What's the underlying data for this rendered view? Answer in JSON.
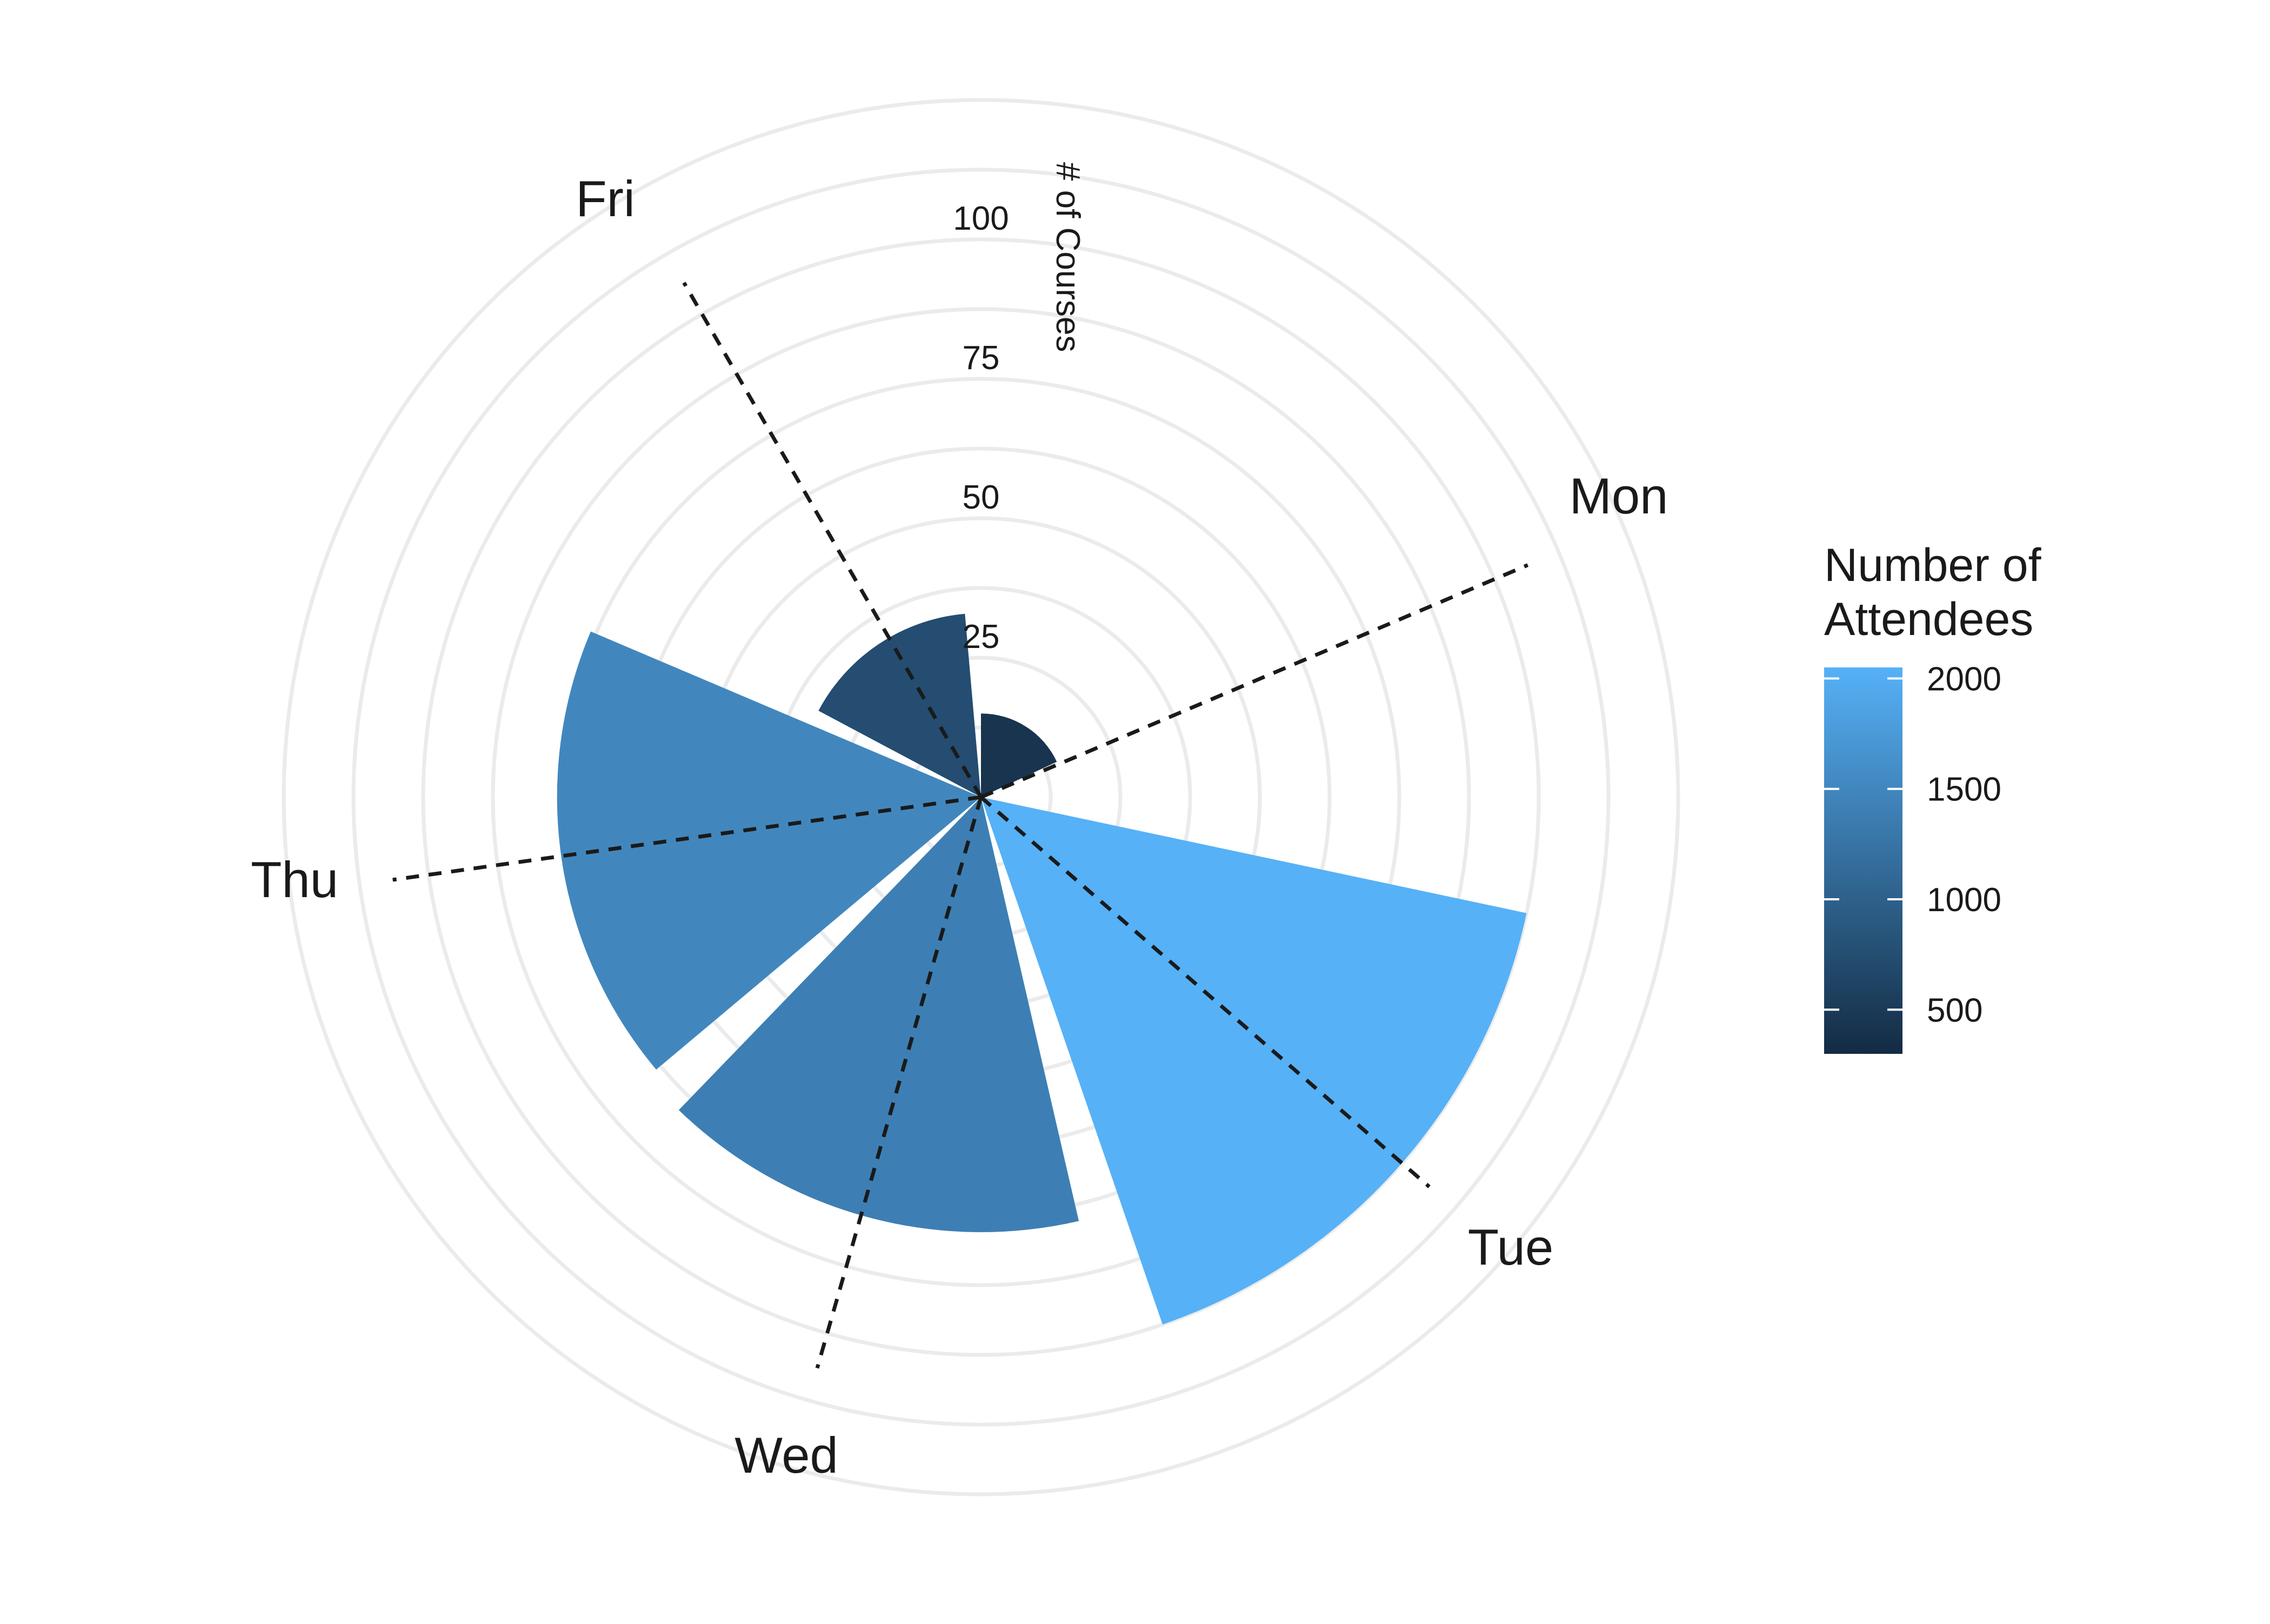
{
  "chart_data": {
    "type": "polar-bar",
    "radial_axis": {
      "label": "# of Courses",
      "range": [
        0,
        125
      ],
      "ticks": [
        25,
        50,
        75,
        100
      ],
      "grid": true
    },
    "categories": [
      "Mon",
      "Tue",
      "Wed",
      "Thu",
      "Fri"
    ],
    "bars": [
      {
        "day": "Mon",
        "courses": 15,
        "attendees": 420,
        "start_deg": 0,
        "end_deg": 65
      },
      {
        "day": "Tue",
        "courses": 100,
        "attendees": 2050,
        "start_deg": 102,
        "end_deg": 161
      },
      {
        "day": "Wed",
        "courses": 78,
        "attendees": 1400,
        "start_deg": 167,
        "end_deg": 224
      },
      {
        "day": "Thu",
        "courses": 76,
        "attendees": 1500,
        "start_deg": 230,
        "end_deg": 293
      },
      {
        "day": "Fri",
        "courses": 33,
        "attendees": 750,
        "start_deg": 298,
        "end_deg": 355
      }
    ],
    "reference_lines": [
      {
        "day": "Mon",
        "angle_deg": 67
      },
      {
        "day": "Tue",
        "angle_deg": 131
      },
      {
        "day": "Wed",
        "angle_deg": 196
      },
      {
        "day": "Thu",
        "angle_deg": 262
      },
      {
        "day": "Fri",
        "angle_deg": 330
      }
    ],
    "legend": {
      "title_lines": [
        "Number of",
        "Attendees"
      ],
      "range": [
        300,
        2050
      ],
      "ticks": [
        500,
        1000,
        1500,
        2000
      ],
      "color_low": "#132B43",
      "color_high": "#56B1F7",
      "position": "right"
    }
  }
}
